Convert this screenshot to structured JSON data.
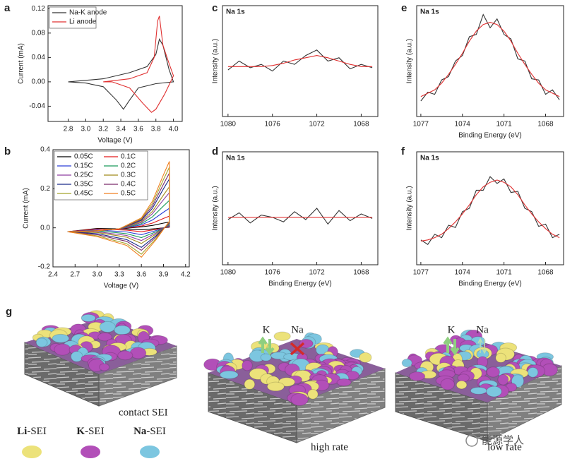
{
  "chart_data": [
    {
      "type": "line",
      "panel": "a",
      "xlabel": "Voltage (V)",
      "ylabel": "Current (mA)",
      "xlim": [
        2.57,
        4.1
      ],
      "ylim": [
        -0.065,
        0.125
      ],
      "xticks": [
        2.8,
        {
          "value": 3,
          "label": "3.0"
        },
        3.2,
        3.4,
        3.6,
        3.8,
        {
          "value": 4,
          "label": "4.0"
        }
      ],
      "yticks": [
        -0.04,
        {
          "value": 0,
          "label": "0.00"
        },
        0.04,
        0.08,
        0.12
      ],
      "legend": "upper-left",
      "legend_columns": 1,
      "series": [
        {
          "name": "Na-K anode",
          "color": "#333333",
          "x": [
            2.8,
            3.2,
            3.5,
            3.7,
            3.8,
            3.84,
            3.88,
            3.95,
            4.0,
            3.8,
            3.6,
            3.5,
            3.43,
            3.35,
            3.2,
            3.0,
            2.8
          ],
          "values": [
            0.0,
            0.005,
            0.015,
            0.025,
            0.045,
            0.07,
            0.06,
            0.02,
            0.0,
            -0.003,
            -0.01,
            -0.03,
            -0.045,
            -0.03,
            -0.008,
            -0.002,
            0.0
          ]
        },
        {
          "name": "Li anode",
          "color": "#e03030",
          "x": [
            3.2,
            3.5,
            3.7,
            3.78,
            3.82,
            3.84,
            3.88,
            3.95,
            4.0,
            3.9,
            3.8,
            3.75,
            3.65,
            3.5,
            3.3,
            3.2
          ],
          "values": [
            0.0,
            0.005,
            0.015,
            0.04,
            0.1,
            0.108,
            0.06,
            0.03,
            0.01,
            -0.02,
            -0.045,
            -0.05,
            -0.035,
            -0.01,
            0.0,
            0.0
          ]
        }
      ]
    },
    {
      "type": "line",
      "panel": "b",
      "xlabel": "Voltage (V)",
      "ylabel": "Current (mA)",
      "xlim": [
        2.4,
        4.25
      ],
      "ylim": [
        -0.2,
        0.4
      ],
      "xticks": [
        2.4,
        2.7,
        {
          "value": 3,
          "label": "3.0"
        },
        3.3,
        3.6,
        3.9,
        4.2
      ],
      "yticks": [
        -0.2,
        {
          "value": 0,
          "label": "0.0"
        },
        0.2,
        0.4
      ],
      "legend": "upper-left",
      "legend_columns": 2,
      "x": [
        2.6,
        3.0,
        3.3,
        3.6,
        3.75,
        3.9,
        3.98,
        3.98,
        3.8,
        3.6,
        3.4,
        3.0,
        2.6
      ],
      "series": [
        {
          "name": "0.05C",
          "color": "#000000",
          "values": [
            -0.02,
            -0.015,
            -0.005,
            0.005,
            0.012,
            0.024,
            0.03,
            0.003,
            -0.004,
            -0.01,
            -0.006,
            -0.003,
            -0.02
          ]
        },
        {
          "name": "0.1C",
          "color": "#e41a1c",
          "values": [
            -0.02,
            -0.015,
            -0.005,
            0.009,
            0.024,
            0.048,
            0.06,
            0.006,
            -0.008,
            -0.02,
            -0.012,
            -0.006,
            -0.02
          ]
        },
        {
          "name": "0.15C",
          "color": "#2b3fd6",
          "values": [
            -0.02,
            -0.015,
            -0.005,
            0.015,
            0.04,
            0.08,
            0.1,
            0.01,
            -0.014,
            -0.035,
            -0.021,
            -0.011,
            -0.02
          ]
        },
        {
          "name": "0.2C",
          "color": "#1a9a5a",
          "values": [
            -0.02,
            -0.015,
            -0.005,
            0.021,
            0.056,
            0.112,
            0.14,
            0.014,
            -0.02,
            -0.05,
            -0.03,
            -0.015,
            -0.02
          ]
        },
        {
          "name": "0.25C",
          "color": "#8e3fa0",
          "values": [
            -0.02,
            -0.015,
            -0.005,
            0.027,
            0.072,
            0.144,
            0.18,
            0.018,
            -0.026,
            -0.065,
            -0.039,
            -0.02,
            -0.02
          ]
        },
        {
          "name": "0.3C",
          "color": "#a08a1a",
          "values": [
            -0.02,
            -0.015,
            -0.005,
            0.032,
            0.084,
            0.168,
            0.21,
            0.021,
            -0.032,
            -0.08,
            -0.048,
            -0.024,
            -0.02
          ]
        },
        {
          "name": "0.35C",
          "color": "#1a2a8a",
          "values": [
            -0.02,
            -0.015,
            -0.005,
            0.038,
            0.1,
            0.2,
            0.25,
            0.025,
            -0.04,
            -0.1,
            -0.06,
            -0.03,
            -0.02
          ]
        },
        {
          "name": "0.4C",
          "color": "#7a2a6a",
          "values": [
            -0.02,
            -0.015,
            -0.005,
            0.042,
            0.112,
            0.224,
            0.28,
            0.028,
            -0.046,
            -0.115,
            -0.069,
            -0.035,
            -0.02
          ]
        },
        {
          "name": "0.45C",
          "color": "#a5a52a",
          "values": [
            -0.02,
            -0.015,
            -0.005,
            0.047,
            0.124,
            0.248,
            0.31,
            0.031,
            -0.054,
            -0.135,
            -0.081,
            -0.041,
            -0.02
          ]
        },
        {
          "name": "0.5C",
          "color": "#f08020",
          "values": [
            -0.02,
            -0.015,
            -0.005,
            0.051,
            0.136,
            0.272,
            0.34,
            0.034,
            -0.06,
            -0.15,
            -0.09,
            -0.045,
            -0.02
          ]
        }
      ]
    },
    {
      "type": "line",
      "panel": "c",
      "label": "Na 1s",
      "ylabel": "Intensity (a.u.)",
      "xlim": [
        1080.5,
        1066.5
      ],
      "ylim": [
        0,
        1
      ],
      "xticks": [
        1080,
        1076,
        1072,
        1068
      ],
      "x": [
        1080,
        1079,
        1078,
        1077,
        1076,
        1075,
        1074,
        1073,
        1072,
        1071,
        1070,
        1069,
        1068,
        1067
      ],
      "series": [
        {
          "color": "#333333",
          "values": [
            0.42,
            0.5,
            0.44,
            0.47,
            0.41,
            0.5,
            0.47,
            0.55,
            0.6,
            0.5,
            0.53,
            0.43,
            0.47,
            0.44
          ]
        },
        {
          "color": "#e03030",
          "values": [
            0.45,
            0.45,
            0.45,
            0.45,
            0.46,
            0.48,
            0.51,
            0.53,
            0.55,
            0.53,
            0.5,
            0.47,
            0.45,
            0.45
          ]
        }
      ]
    },
    {
      "type": "line",
      "panel": "d",
      "label": "Na 1s",
      "xlabel": "Binding Energy (eV)",
      "ylabel": "Intensity (a.u.)",
      "xlim": [
        1080.5,
        1066.5
      ],
      "ylim": [
        0,
        1
      ],
      "xticks": [
        1080,
        1076,
        1072,
        1068
      ],
      "x": [
        1080,
        1079,
        1078,
        1077,
        1076,
        1075,
        1074,
        1073,
        1072,
        1071,
        1070,
        1069,
        1068,
        1067
      ],
      "series": [
        {
          "color": "#333333",
          "values": [
            0.4,
            0.46,
            0.37,
            0.44,
            0.42,
            0.38,
            0.47,
            0.4,
            0.5,
            0.36,
            0.48,
            0.39,
            0.45,
            0.41
          ]
        },
        {
          "color": "#e03030",
          "values": [
            0.42,
            0.42,
            0.42,
            0.42,
            0.42,
            0.42,
            0.42,
            0.42,
            0.42,
            0.42,
            0.42,
            0.42,
            0.42,
            0.42
          ]
        }
      ]
    },
    {
      "type": "line",
      "panel": "e",
      "label": "Na 1s",
      "xlabel": "Binding Energy (eV)",
      "ylabel": "Intensity (a.u.)",
      "xlim": [
        1077.3,
        1066.7
      ],
      "ylim": [
        0,
        1
      ],
      "xticks": [
        1077,
        1074,
        1071,
        1068
      ],
      "x": [
        1077,
        1076.5,
        1076,
        1075.5,
        1075,
        1074.5,
        1074,
        1073.5,
        1073,
        1072.5,
        1072,
        1071.5,
        1071,
        1070.5,
        1070,
        1069.5,
        1069,
        1068.5,
        1068,
        1067.5,
        1067
      ],
      "series": [
        {
          "color": "#333333",
          "values": [
            0.14,
            0.22,
            0.2,
            0.33,
            0.36,
            0.5,
            0.55,
            0.72,
            0.74,
            0.92,
            0.8,
            0.88,
            0.74,
            0.7,
            0.52,
            0.5,
            0.34,
            0.33,
            0.2,
            0.24,
            0.15
          ]
        },
        {
          "color": "#e03030",
          "values": [
            0.18,
            0.21,
            0.24,
            0.3,
            0.38,
            0.47,
            0.57,
            0.68,
            0.77,
            0.83,
            0.85,
            0.83,
            0.77,
            0.68,
            0.57,
            0.47,
            0.38,
            0.3,
            0.24,
            0.21,
            0.18
          ]
        }
      ]
    },
    {
      "type": "line",
      "panel": "f",
      "label": "Na 1s",
      "xlabel": "Binding Energy (eV)",
      "ylabel": "Intensity (a.u.)",
      "xlim": [
        1077.3,
        1066.7
      ],
      "ylim": [
        0,
        1
      ],
      "xticks": [
        1077,
        1074,
        1071,
        1068
      ],
      "x": [
        1077,
        1076.5,
        1076,
        1075.5,
        1075,
        1074.5,
        1074,
        1073.5,
        1073,
        1072.5,
        1072,
        1071.5,
        1071,
        1070.5,
        1070,
        1069.5,
        1069,
        1068.5,
        1068,
        1067.5,
        1067
      ],
      "series": [
        {
          "color": "#333333",
          "values": [
            0.22,
            0.18,
            0.27,
            0.24,
            0.35,
            0.33,
            0.47,
            0.5,
            0.66,
            0.66,
            0.78,
            0.72,
            0.76,
            0.64,
            0.65,
            0.5,
            0.47,
            0.34,
            0.36,
            0.24,
            0.27
          ]
        },
        {
          "color": "#e03030",
          "values": [
            0.21,
            0.22,
            0.24,
            0.27,
            0.32,
            0.38,
            0.45,
            0.53,
            0.62,
            0.69,
            0.73,
            0.75,
            0.73,
            0.69,
            0.62,
            0.53,
            0.45,
            0.38,
            0.32,
            0.27,
            0.24
          ]
        }
      ]
    }
  ],
  "illustration": {
    "label": "g",
    "blocks": [
      {
        "caption": "contact SEI"
      },
      {
        "caption": "high rate",
        "ions": [
          "K",
          "Na"
        ]
      },
      {
        "caption": "low rate",
        "ions": [
          "K",
          "Na"
        ]
      }
    ],
    "legend": [
      {
        "prefix": "Li",
        "suffix": "-SEI"
      },
      {
        "prefix": "K",
        "suffix": "-SEI"
      },
      {
        "prefix": "Na",
        "suffix": "-SEI"
      }
    ],
    "watermark": "能源学人"
  }
}
